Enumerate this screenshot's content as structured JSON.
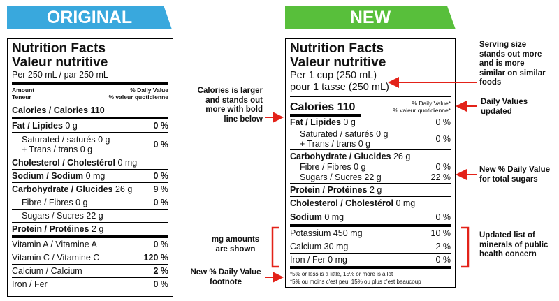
{
  "original": {
    "banner": "ORIGINAL",
    "title_en": "Nutrition Facts",
    "title_fr": "Valeur nutritive",
    "serving": "Per 250 mL  / par 250 mL",
    "amount_en": "Amount",
    "amount_fr": "Teneur",
    "dv_en": "% Daily Value",
    "dv_fr": "% valeur quotidienne",
    "rows": [
      {
        "name": "Calories / Calories 110"
      },
      {
        "name": "Fat / Lipides",
        "amount": "0 g",
        "dv": "0 %"
      },
      {
        "lines": [
          "Saturated / saturés 0 g",
          "+ Trans / trans 0 g"
        ],
        "dv": "0 %"
      },
      {
        "name": "Cholesterol / Cholestérol",
        "amount": "0 mg"
      },
      {
        "name": "Sodium / Sodium",
        "amount": "0 mg",
        "dv": "0 %"
      },
      {
        "name": "Carbohydrate / Glucides",
        "amount": "26 g",
        "dv": "9 %"
      },
      {
        "name": "Fibre / Fibres",
        "amount": "0 g",
        "dv": "0 %"
      },
      {
        "name": "Sugars / Sucres",
        "amount": "22 g"
      },
      {
        "name": "Protein / Protéines",
        "amount": "2 g"
      },
      {
        "name": "Vitamin A / Vitamine A",
        "dv": "0 %"
      },
      {
        "name": "Vitamin C / Vitamine C",
        "dv": "120 %"
      },
      {
        "name": "Calcium / Calcium",
        "dv": "2 %"
      },
      {
        "name": "Iron / Fer",
        "dv": "0 %"
      }
    ]
  },
  "new": {
    "banner": "NEW",
    "title_en": "Nutrition Facts",
    "title_fr": "Valeur nutritive",
    "serving_en": "Per 1 cup (250 mL)",
    "serving_fr": "pour 1 tasse (250 mL)",
    "calories": "Calories 110",
    "dv_en": "% Daily Value*",
    "dv_fr": "% valeur quotidienne*",
    "rows": [
      {
        "name": "Fat / Lipides",
        "amount": "0 g",
        "dv": "0 %"
      },
      {
        "lines": [
          "Saturated / saturés 0 g",
          "+ Trans / trans 0 g"
        ],
        "dv": "0 %"
      },
      {
        "name": "Carbohydrate / Glucides",
        "amount": "26 g"
      },
      {
        "name": "Fibre / Fibres 0 g",
        "dv": "0 %"
      },
      {
        "name": "Sugars / Sucres 22 g",
        "dv": "22 %"
      },
      {
        "name": "Protein / Protéines",
        "amount": "2 g"
      },
      {
        "name": "Cholesterol / Cholestérol",
        "amount": "0 mg"
      },
      {
        "name": "Sodium",
        "amount": "0 mg",
        "dv": "0 %"
      },
      {
        "name": "Potassium 450 mg",
        "dv": "10 %"
      },
      {
        "name": "Calcium 30 mg",
        "dv": "2 %"
      },
      {
        "name": "Iron / Fer 0 mg",
        "dv": "0 %"
      }
    ],
    "footnote": [
      "*5% or less is a little, 15% or more is a lot",
      "*5% ou moins c'est peu, 15% ou plus c'est beaucoup"
    ]
  },
  "annotations": {
    "serving": "Serving size stands out more and is more similar on similar foods",
    "calories": "Calories is larger and stands out more with bold line below",
    "daily_values": "Daily Values updated",
    "sugars": "New % Daily Value for total sugars",
    "mg": "mg amounts are shown",
    "minerals": "Updated list of minerals of public health concern",
    "footnote": "New % Daily Value footnote"
  }
}
